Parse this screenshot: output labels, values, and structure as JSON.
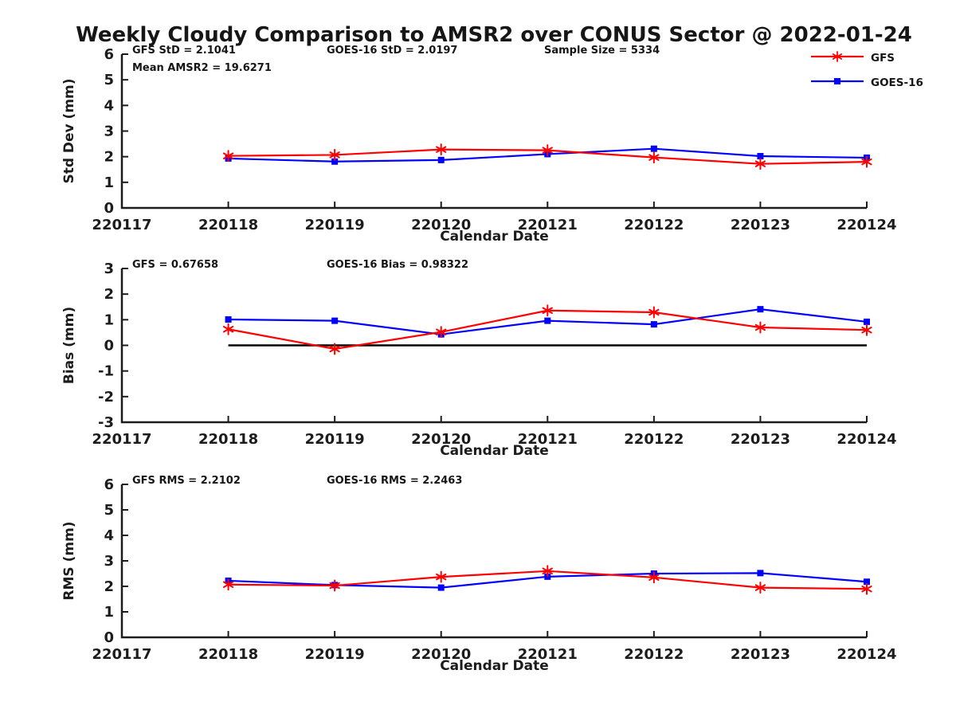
{
  "title": "Weekly Cloudy Comparison to AMSR2 over CONUS Sector @ 2022-01-24",
  "legend": {
    "position": "top-right",
    "items": [
      {
        "label": "GFS",
        "color": "#ff0000",
        "marker": "asterisk"
      },
      {
        "label": "GOES-16",
        "color": "#0000ff",
        "marker": "square"
      }
    ]
  },
  "colors": {
    "gfs": "#ff0000",
    "goes16": "#0000ff",
    "axis": "#1c1c1c",
    "zero_line": "#000000",
    "background": "#ffffff"
  },
  "chart_data": [
    {
      "type": "line",
      "name": "std-dev",
      "title": "",
      "ylabel": "Std Dev (mm)",
      "xlabel": "Calendar Date",
      "ylim": [
        0,
        6
      ],
      "yticks": [
        0,
        1,
        2,
        3,
        4,
        5,
        6
      ],
      "grid": false,
      "categories": [
        "220117",
        "220118",
        "220119",
        "220120",
        "220121",
        "220122",
        "220123",
        "220124"
      ],
      "annotations": [
        {
          "text": "GFS StD = 2.1041",
          "col": 0,
          "row": 0
        },
        {
          "text": "Mean AMSR2 = 19.6271",
          "col": 0,
          "row": 1
        },
        {
          "text": "GOES-16 StD = 2.0197",
          "col": 1,
          "row": 0
        },
        {
          "text": "Sample Size = 5334",
          "col": 2,
          "row": 0
        }
      ],
      "zero_line": false,
      "series": [
        {
          "name": "GFS",
          "color": "#ff0000",
          "marker": "asterisk",
          "values": [
            null,
            2.03,
            2.07,
            2.28,
            2.25,
            1.97,
            1.72,
            1.8
          ]
        },
        {
          "name": "GOES-16",
          "color": "#0000ff",
          "marker": "square",
          "values": [
            null,
            1.93,
            1.81,
            1.87,
            2.1,
            2.31,
            2.02,
            1.96
          ]
        }
      ]
    },
    {
      "type": "line",
      "name": "bias",
      "title": "",
      "ylabel": "Bias (mm)",
      "xlabel": "Calendar Date",
      "ylim": [
        -3,
        3
      ],
      "yticks": [
        -3,
        -2,
        -1,
        0,
        1,
        2,
        3
      ],
      "grid": false,
      "categories": [
        "220117",
        "220118",
        "220119",
        "220120",
        "220121",
        "220122",
        "220123",
        "220124"
      ],
      "annotations": [
        {
          "text": "GFS = 0.67658",
          "col": 0,
          "row": 0
        },
        {
          "text": "GOES-16 Bias  = 0.98322",
          "col": 1,
          "row": 0
        }
      ],
      "zero_line": true,
      "series": [
        {
          "name": "GFS",
          "color": "#ff0000",
          "marker": "asterisk",
          "values": [
            null,
            0.63,
            -0.14,
            0.52,
            1.36,
            1.29,
            0.7,
            0.6
          ]
        },
        {
          "name": "GOES-16",
          "color": "#0000ff",
          "marker": "square",
          "values": [
            null,
            1.01,
            0.96,
            0.43,
            0.96,
            0.82,
            1.41,
            0.92
          ]
        }
      ]
    },
    {
      "type": "line",
      "name": "rms",
      "title": "",
      "ylabel": "RMS (mm)",
      "xlabel": "Calendar Date",
      "ylim": [
        0,
        6
      ],
      "yticks": [
        0,
        1,
        2,
        3,
        4,
        5,
        6
      ],
      "grid": false,
      "categories": [
        "220117",
        "220118",
        "220119",
        "220120",
        "220121",
        "220122",
        "220123",
        "220124"
      ],
      "annotations": [
        {
          "text": "GFS RMS = 2.2102",
          "col": 0,
          "row": 0
        },
        {
          "text": "GOES-16 RMS = 2.2463",
          "col": 1,
          "row": 0
        }
      ],
      "zero_line": false,
      "series": [
        {
          "name": "GFS",
          "color": "#ff0000",
          "marker": "asterisk",
          "values": [
            null,
            2.07,
            2.03,
            2.37,
            2.6,
            2.35,
            1.95,
            1.9
          ]
        },
        {
          "name": "GOES-16",
          "color": "#0000ff",
          "marker": "square",
          "values": [
            null,
            2.22,
            2.05,
            1.95,
            2.38,
            2.5,
            2.52,
            2.18
          ]
        }
      ]
    }
  ]
}
